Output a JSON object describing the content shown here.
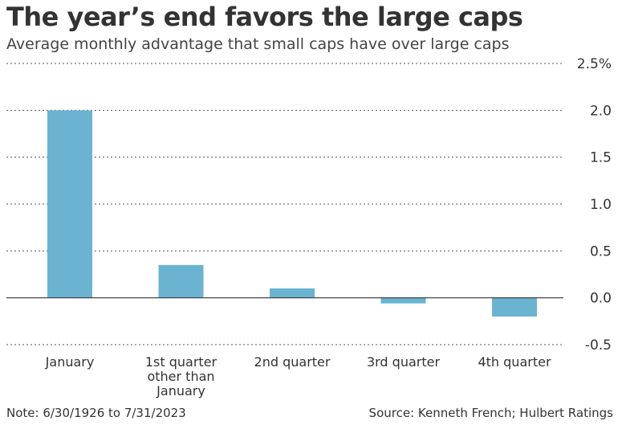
{
  "header": {
    "title": "The year’s end favors the large caps",
    "subtitle": "Average monthly advantage that small caps have over large caps"
  },
  "footer": {
    "note": "Note: 6/30/1926 to 7/31/2023",
    "source": "Source: Kenneth French; Hulbert Ratings"
  },
  "colors": {
    "bar": "#6ab4d2",
    "grid": "#555555",
    "zero": "#333333"
  },
  "chart_data": {
    "type": "bar",
    "title": "The year’s end favors the large caps",
    "subtitle": "Average monthly advantage that small caps have over large caps",
    "categories": [
      [
        "January"
      ],
      [
        "1st quarter",
        "other than",
        "January"
      ],
      [
        "2nd quarter"
      ],
      [
        "3rd quarter"
      ],
      [
        "4th quarter"
      ]
    ],
    "values": [
      2.0,
      0.35,
      0.1,
      -0.06,
      -0.2
    ],
    "ylim": [
      -0.5,
      2.5
    ],
    "yticks": [
      {
        "value": 2.5,
        "label": "2.5%"
      },
      {
        "value": 2.0,
        "label": "2.0"
      },
      {
        "value": 1.5,
        "label": "1.5"
      },
      {
        "value": 1.0,
        "label": "1.0"
      },
      {
        "value": 0.5,
        "label": "0.5"
      },
      {
        "value": 0.0,
        "label": "0.0"
      },
      {
        "value": -0.5,
        "label": "-0.5"
      }
    ],
    "grid": true,
    "y_axis_position": "right"
  }
}
